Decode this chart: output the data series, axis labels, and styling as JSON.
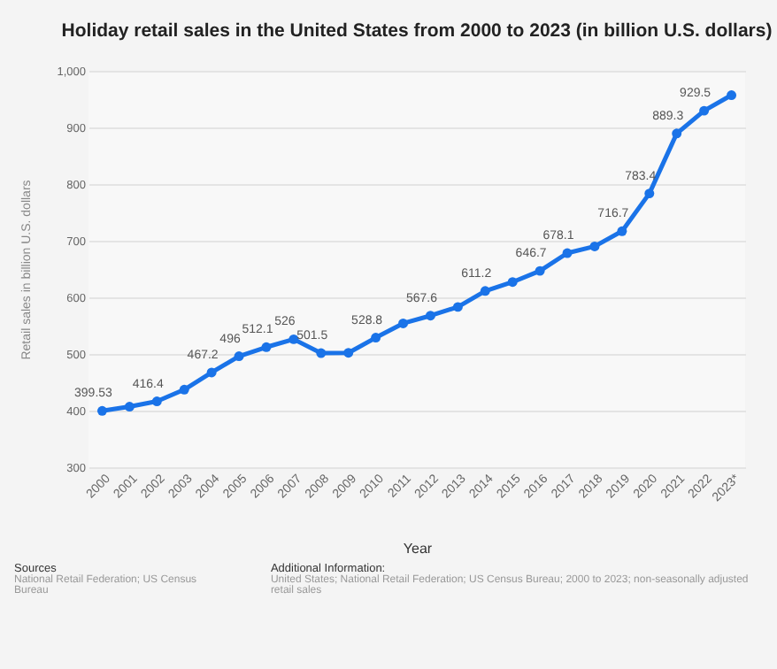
{
  "chart_data": {
    "type": "line",
    "title": "Holiday retail sales in the United States from 2000 to 2023 (in billion U.S. dollars)",
    "xlabel": "Year",
    "ylabel": "Retail sales in billion U.S. dollars",
    "categories": [
      "2000",
      "2001",
      "2002",
      "2003",
      "2004",
      "2005",
      "2006",
      "2007",
      "2008",
      "2009",
      "2010",
      "2011",
      "2012",
      "2013",
      "2014",
      "2015",
      "2016",
      "2017",
      "2018",
      "2019",
      "2020",
      "2021",
      "2022",
      "2023*"
    ],
    "series": [
      {
        "color": "#1a73e8",
        "values": [
          399.53,
          407,
          416.4,
          437,
          467.2,
          496,
          512.1,
          526,
          501.5,
          502,
          528.8,
          554,
          567.6,
          583,
          611.2,
          627,
          646.7,
          678.1,
          690,
          716.7,
          783.4,
          889.3,
          929.5,
          957
        ],
        "value_labels": [
          "399.53",
          null,
          "416.4",
          null,
          "467.2",
          "496",
          "512.1",
          "526",
          "501.5",
          null,
          "528.8",
          null,
          "567.6",
          null,
          "611.2",
          null,
          "646.7",
          "678.1",
          null,
          "716.7",
          "783.4",
          "889.3",
          "929.5",
          null
        ]
      }
    ],
    "ylim": [
      300,
      1000
    ],
    "yticks": [
      300,
      400,
      500,
      600,
      700,
      800,
      900,
      {
        "value": 1000,
        "label": "1,000"
      }
    ],
    "grid": "y",
    "marker": "circle",
    "line_style": "solid",
    "annotations": [
      "Sources",
      "National Retail Federation; US Census Bureau",
      "Additional Information:",
      "United States; National Retail Federation; US Census Bureau; 2000 to 2023; non-seasonally adjusted retail sales"
    ]
  }
}
